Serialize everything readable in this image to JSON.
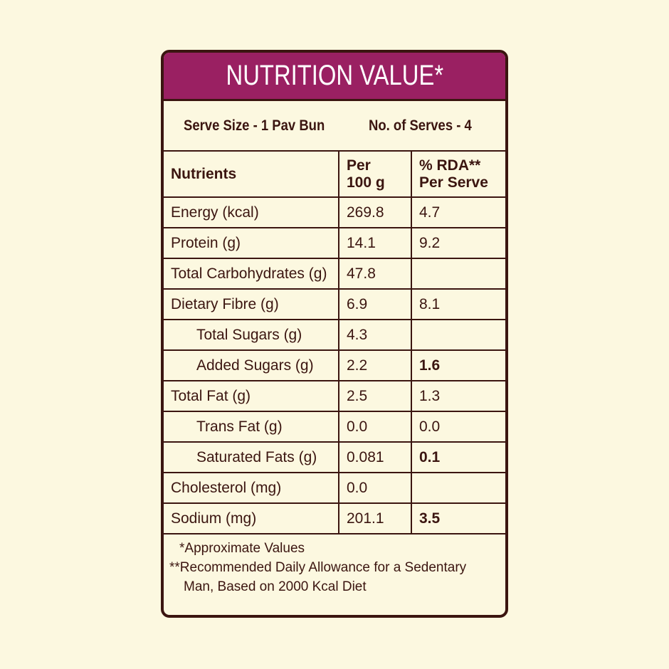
{
  "header": {
    "title": "NUTRITION VALUE*"
  },
  "serve": {
    "size": "Serve Size - 1 Pav Bun",
    "count": "No. of Serves - 4"
  },
  "table": {
    "columns": [
      "Nutrients",
      "Per\n100 g",
      "% RDA**\nPer Serve"
    ],
    "rows": [
      [
        "Energy (kcal)",
        "269.8",
        "4.7"
      ],
      [
        "Protein (g)",
        "14.1",
        "9.2"
      ],
      [
        "Total Carbohydrates (g)",
        "47.8",
        null
      ],
      [
        "Dietary Fibre (g)",
        "6.9",
        "8.1"
      ],
      [
        "Total Sugars (g)",
        "4.3",
        null
      ],
      [
        "Added Sugars (g)",
        "2.2",
        "1.6"
      ],
      [
        "Total Fat (g)",
        "2.5",
        "1.3"
      ],
      [
        "Trans Fat (g)",
        "0.0",
        "0.0"
      ],
      [
        "Saturated Fats (g)",
        "0.081",
        "0.1"
      ],
      [
        "Cholesterol (mg)",
        "0.0",
        null
      ],
      [
        "Sodium (mg)",
        "201.1",
        "3.5"
      ]
    ],
    "indented_rows": [
      4,
      5,
      7,
      8
    ],
    "bold_rda_rows": [
      5,
      8,
      10
    ]
  },
  "footnotes": [
    "*Approximate Values",
    "**Recommended Daily Allowance for a Sedentary\nMan, Based on 2000 Kcal Diet"
  ]
}
